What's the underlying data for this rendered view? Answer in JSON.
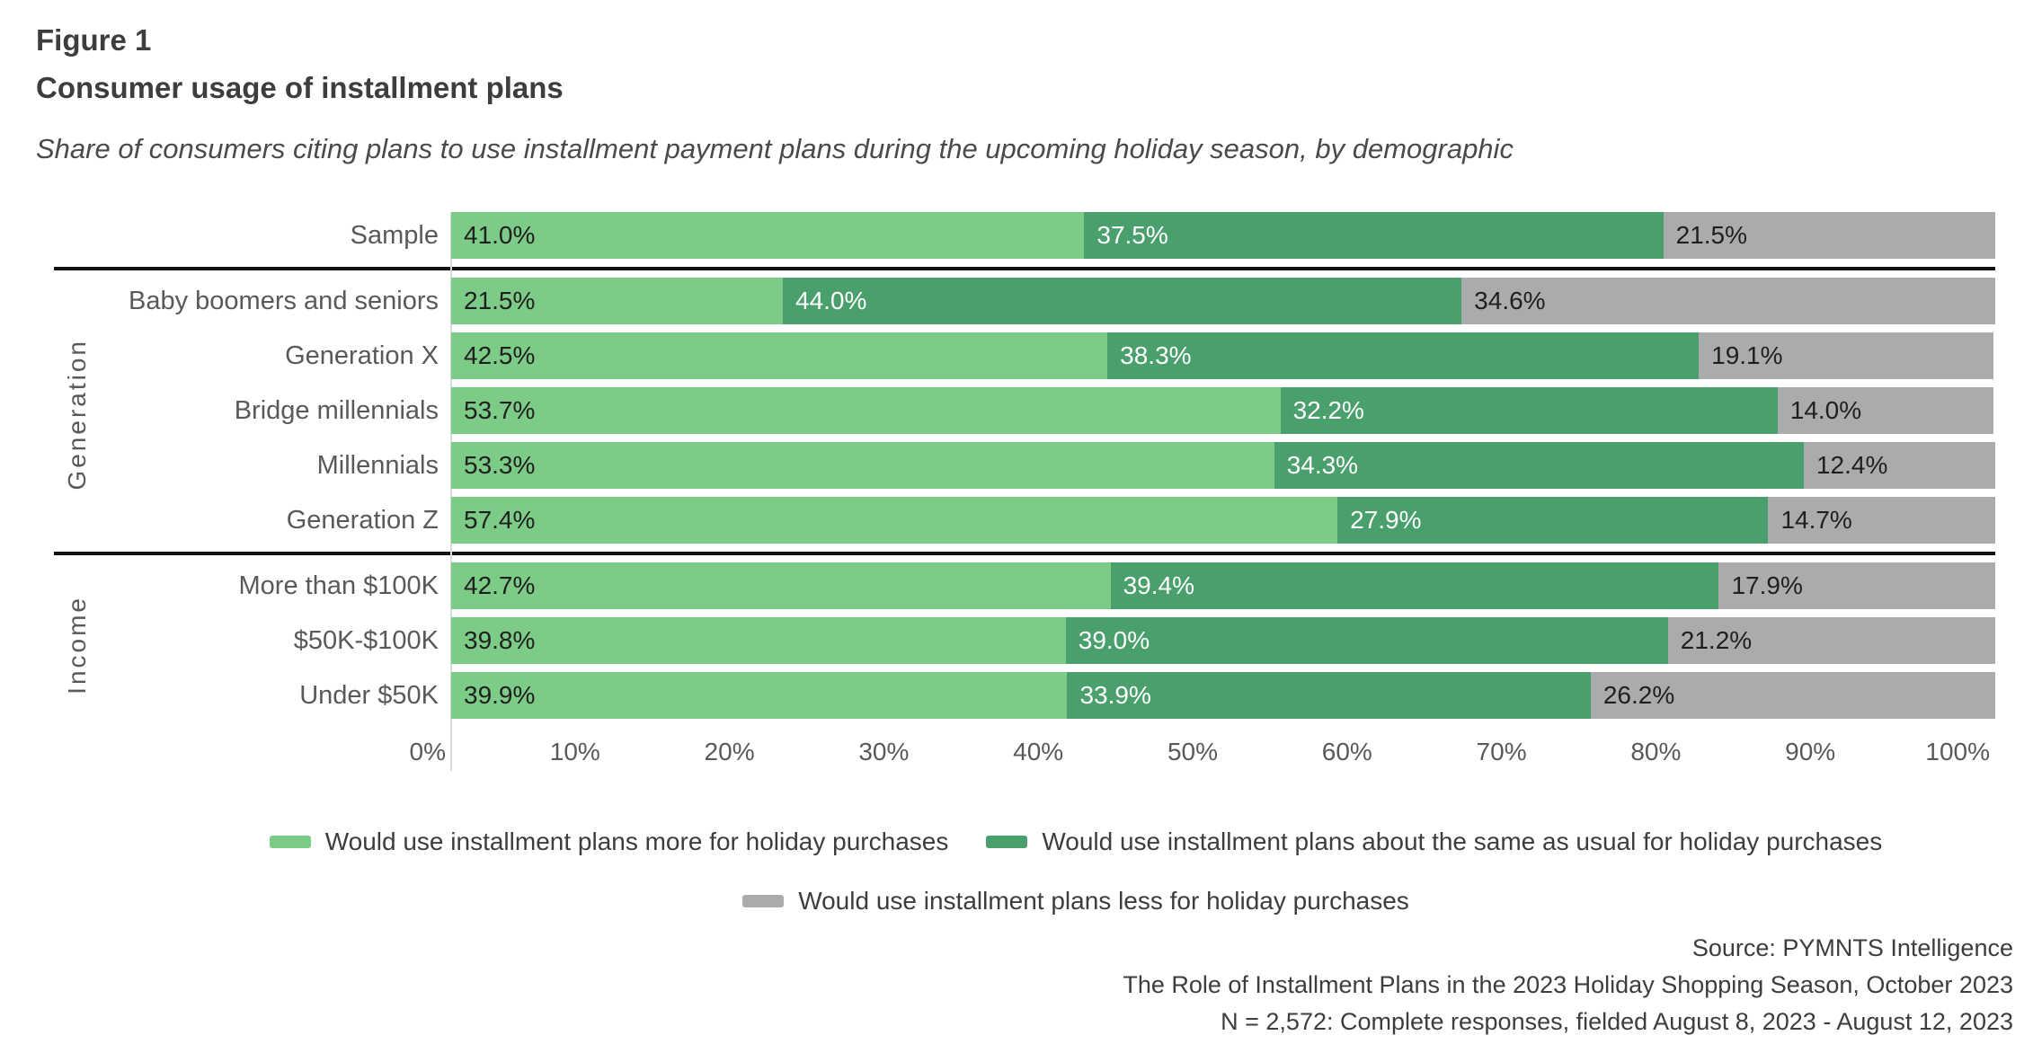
{
  "figure_label": "Figure 1",
  "title": "Consumer usage of installment plans",
  "subtitle": "Share of consumers citing plans to use installment payment plans during the upcoming holiday season, by demographic",
  "colors": {
    "more": "#7ccc87",
    "same": "#4aa06c",
    "less": "#a9abad",
    "separator": "#121212",
    "axis_line": "#d9d9d9",
    "label_text": "#595959",
    "title_text": "#3d3d3d"
  },
  "chart_data": {
    "type": "bar",
    "stacked": true,
    "orientation": "horizontal",
    "xlim": [
      0,
      100
    ],
    "x_ticks": [
      "0%",
      "10%",
      "20%",
      "30%",
      "40%",
      "50%",
      "60%",
      "70%",
      "80%",
      "90%",
      "100%"
    ],
    "series_names": [
      "Would use installment plans more for holiday purchases",
      "Would use installment plans about the same as usual for holiday purchases",
      "Would use installment plans less for holiday purchases"
    ],
    "groups": [
      {
        "name": "",
        "rows": [
          {
            "label": "Sample",
            "values": [
              41.0,
              37.5,
              21.5
            ]
          }
        ]
      },
      {
        "name": "Generation",
        "rows": [
          {
            "label": "Baby boomers and seniors",
            "values": [
              21.5,
              44.0,
              34.6
            ]
          },
          {
            "label": "Generation X",
            "values": [
              42.5,
              38.3,
              19.1
            ]
          },
          {
            "label": "Bridge millennials",
            "values": [
              53.7,
              32.2,
              14.0
            ]
          },
          {
            "label": "Millennials",
            "values": [
              53.3,
              34.3,
              12.4
            ]
          },
          {
            "label": "Generation Z",
            "values": [
              57.4,
              27.9,
              14.7
            ]
          }
        ]
      },
      {
        "name": "Income",
        "rows": [
          {
            "label": "More than $100K",
            "values": [
              42.7,
              39.4,
              17.9
            ]
          },
          {
            "label": "$50K-$100K",
            "values": [
              39.8,
              39.0,
              21.2
            ]
          },
          {
            "label": "Under $50K",
            "values": [
              39.9,
              33.9,
              26.2
            ]
          }
        ]
      }
    ]
  },
  "legend": {
    "row1": [
      "Would use installment plans more for holiday purchases",
      "Would use installment plans about the same as usual for holiday purchases"
    ],
    "row2": [
      "Would use installment plans less for holiday purchases"
    ]
  },
  "source_lines": [
    "Source: PYMNTS Intelligence",
    "The Role of Installment Plans in the 2023 Holiday Shopping Season, October 2023",
    "N = 2,572: Complete responses, fielded August 8, 2023 - August 12, 2023"
  ]
}
